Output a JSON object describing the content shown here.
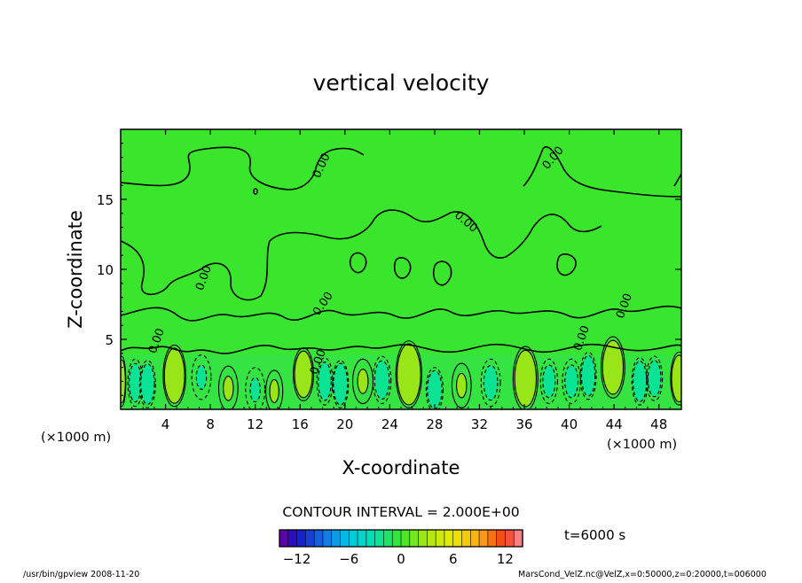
{
  "chart_data": {
    "type": "heatmap",
    "title": "vertical velocity",
    "xlabel": "X-coordinate",
    "ylabel": "Z-coordinate",
    "x_unit_left": "(×1000 m)",
    "x_unit_right": "(×1000 m)",
    "xlim": [
      0,
      50
    ],
    "ylim": [
      0,
      20
    ],
    "x_ticks": [
      4,
      8,
      12,
      16,
      20,
      24,
      28,
      32,
      36,
      40,
      44,
      48
    ],
    "y_ticks": [
      5,
      10,
      15
    ],
    "contour_interval_text": "CONTOUR INTERVAL = 2.000E+00",
    "time_label": "t=6000 s",
    "colorbar": {
      "min": -14,
      "max": 14,
      "step": 1,
      "ticks": [
        -12,
        -6,
        0,
        6,
        12
      ]
    },
    "contour_labels": [
      {
        "text": "0.00",
        "x": 18.2,
        "z": 17.3,
        "angle": -65
      },
      {
        "text": "0.00",
        "x": 38.8,
        "z": 17.8,
        "angle": -50
      },
      {
        "text": "0.00",
        "x": 30.6,
        "z": 13.2,
        "angle": 40
      },
      {
        "text": "0.00",
        "x": 7.7,
        "z": 9.3,
        "angle": -70
      },
      {
        "text": "0.00",
        "x": 18.3,
        "z": 7.4,
        "angle": -55
      },
      {
        "text": "0.00",
        "x": 45.2,
        "z": 7.3,
        "angle": -70
      },
      {
        "text": "0.00",
        "x": 17.9,
        "z": 3.3,
        "angle": -70
      },
      {
        "text": "0.00",
        "x": 3.5,
        "z": 4.8,
        "angle": -70
      },
      {
        "text": "0.00",
        "x": 41.4,
        "z": 5.0,
        "angle": -70
      }
    ],
    "cells": [
      {
        "x": 0.1,
        "z": 2.0,
        "w": 0.2,
        "s": 1.6,
        "a": 8
      },
      {
        "x": 1.3,
        "z": 1.9,
        "w": 0.5,
        "s": 1.5,
        "a": -7
      },
      {
        "x": 2.4,
        "z": 1.8,
        "w": 0.55,
        "s": 1.5,
        "a": -9
      },
      {
        "x": 4.8,
        "z": 2.4,
        "w": 0.85,
        "s": 2.0,
        "a": 13
      },
      {
        "x": 7.2,
        "z": 2.3,
        "w": 0.7,
        "s": 1.4,
        "a": -3
      },
      {
        "x": 9.6,
        "z": 1.5,
        "w": 0.7,
        "s": 1.4,
        "a": 2
      },
      {
        "x": 12.0,
        "z": 1.4,
        "w": 0.7,
        "s": 1.4,
        "a": -3
      },
      {
        "x": 13.7,
        "z": 1.3,
        "w": 0.6,
        "s": 1.3,
        "a": 2
      },
      {
        "x": 16.3,
        "z": 2.5,
        "w": 0.75,
        "s": 1.7,
        "a": 10
      },
      {
        "x": 18.2,
        "z": 2.0,
        "w": 0.55,
        "s": 1.5,
        "a": -7
      },
      {
        "x": 19.6,
        "z": 1.8,
        "w": 0.55,
        "s": 1.5,
        "a": -10
      },
      {
        "x": 21.6,
        "z": 2.0,
        "w": 0.75,
        "s": 1.4,
        "a": 2
      },
      {
        "x": 23.3,
        "z": 2.1,
        "w": 0.65,
        "s": 1.5,
        "a": -7
      },
      {
        "x": 25.7,
        "z": 2.5,
        "w": 1.0,
        "s": 2.2,
        "a": 14
      },
      {
        "x": 28.0,
        "z": 1.4,
        "w": 0.6,
        "s": 1.4,
        "a": -8
      },
      {
        "x": 30.4,
        "z": 1.7,
        "w": 0.7,
        "s": 1.4,
        "a": 3
      },
      {
        "x": 33.0,
        "z": 1.9,
        "w": 0.7,
        "s": 1.5,
        "a": -5
      },
      {
        "x": 36.1,
        "z": 2.2,
        "w": 0.95,
        "s": 2.1,
        "a": 11
      },
      {
        "x": 38.2,
        "z": 2.0,
        "w": 0.6,
        "s": 1.4,
        "a": -4
      },
      {
        "x": 40.2,
        "z": 2.0,
        "w": 0.65,
        "s": 1.4,
        "a": -5
      },
      {
        "x": 41.7,
        "z": 2.4,
        "w": 0.55,
        "s": 1.5,
        "a": -9
      },
      {
        "x": 43.9,
        "z": 3.0,
        "w": 0.9,
        "s": 2.0,
        "a": 11
      },
      {
        "x": 46.3,
        "z": 2.0,
        "w": 0.55,
        "s": 1.5,
        "a": -8
      },
      {
        "x": 47.6,
        "z": 2.2,
        "w": 0.55,
        "s": 1.4,
        "a": -6
      },
      {
        "x": 49.8,
        "z": 2.2,
        "w": 0.6,
        "s": 1.7,
        "a": 11
      }
    ]
  },
  "footer": {
    "left": "/usr/bin/gpview  2008-11-20",
    "right": "MarsCond_VelZ.nc@VelZ,x=0:50000,z=0:20000,t=006000"
  }
}
